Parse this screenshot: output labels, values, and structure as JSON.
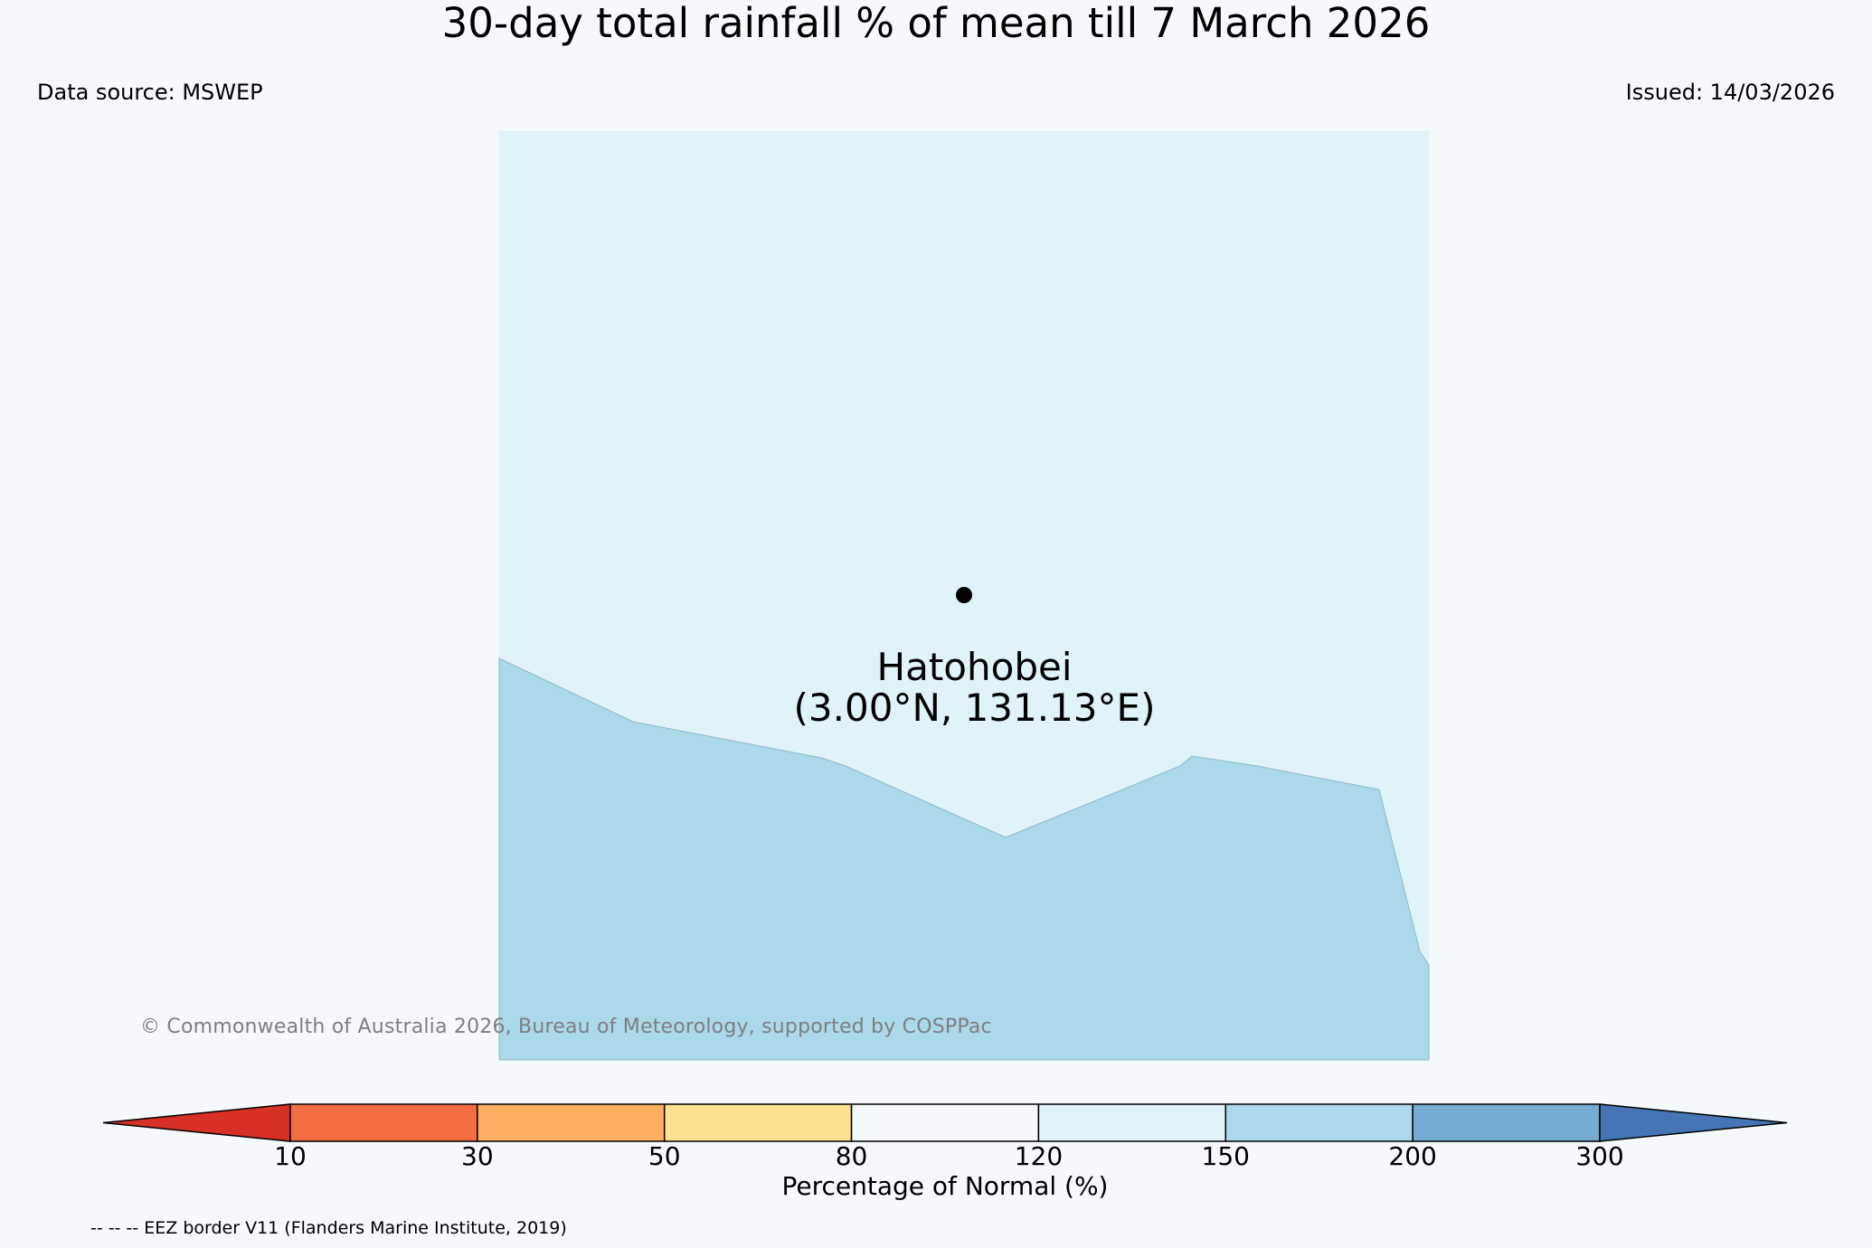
{
  "header": {
    "title": "30-day total rainfall % of mean till 7 March 2026",
    "data_source": "Data source: MSWEP",
    "issued": "Issued: 14/03/2026"
  },
  "map": {
    "location": {
      "name": "Hatohobei",
      "coords": "(3.00°N, 131.13°E)",
      "lat": 3.0,
      "lon": 131.13
    },
    "colors": {
      "page_background": "#f4f9fb",
      "map_area": "#e0f3f8",
      "rain_zone": "#abd9e9",
      "rain_zone_edge": "#8fb9c9",
      "marker": "#000000"
    },
    "copyright": "© Commonwealth of Australia 2026, Bureau of Meteorology, supported by COSPPac"
  },
  "legend": {
    "label": "Percentage of Normal (%)",
    "ticks": [
      "10",
      "30",
      "50",
      "80",
      "120",
      "150",
      "200",
      "300"
    ],
    "colors": [
      "#d73027",
      "#f46d43",
      "#fdae61",
      "#fee090",
      "#f4f9fb",
      "#e0f3f8",
      "#abd9e9",
      "#74add1",
      "#4575b4"
    ]
  },
  "footnote": "-- -- -- EEZ border V11 (Flanders Marine Institute, 2019)"
}
